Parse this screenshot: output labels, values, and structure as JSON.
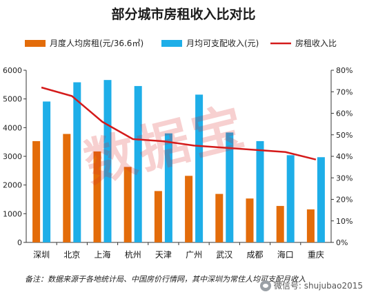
{
  "chart_data": {
    "type": "bar",
    "title": "部分城市房租收入比对比",
    "categories": [
      "深圳",
      "北京",
      "上海",
      "杭州",
      "天津",
      "广州",
      "武汉",
      "成都",
      "海口",
      "重庆"
    ],
    "series": [
      {
        "name": "月度人均房租(元/36.6㎡)",
        "type": "bar",
        "axis": "left",
        "color": "#E36C0A",
        "values": [
          3530,
          3780,
          3170,
          2630,
          1790,
          2320,
          1690,
          1530,
          1270,
          1150
        ]
      },
      {
        "name": "月均可支配收入(元)",
        "type": "bar",
        "axis": "left",
        "color": "#1EAEE8",
        "values": [
          4910,
          5580,
          5660,
          5450,
          3800,
          5150,
          3830,
          3530,
          3040,
          2970
        ]
      },
      {
        "name": "房租收入比",
        "type": "line",
        "axis": "right",
        "color": "#D41A1A",
        "values": [
          0.72,
          0.68,
          0.56,
          0.48,
          0.47,
          0.45,
          0.44,
          0.43,
          0.42,
          0.385
        ]
      }
    ],
    "yleft": {
      "min": 0,
      "max": 6000,
      "ticks": [
        "0",
        "1000",
        "2000",
        "3000",
        "4000",
        "5000",
        "6000"
      ]
    },
    "yright": {
      "min": 0,
      "max": 0.8,
      "ticks": [
        "0%",
        "10%",
        "20%",
        "30%",
        "40%",
        "50%",
        "60%",
        "70%",
        "80%"
      ]
    },
    "grid": false,
    "legend": "top"
  },
  "note": "备注：数据来源于各地统计局、中国房价行情网，其中深圳为常住人均可支配月收入",
  "watermark": "数据宝",
  "wechat_badge": "微信号: shujubao2015"
}
